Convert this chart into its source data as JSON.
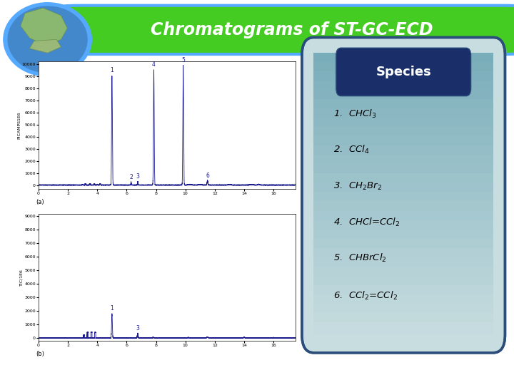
{
  "title": "Chromatograms of ST-GC-ECD",
  "title_color": "#ffffff",
  "title_bg_color": "#44cc22",
  "title_border_color": "#55aaff",
  "bg_color": "#ffffff",
  "chromatogram_line_color": "#1a1a8c",
  "species_box_bg_top": "#7aadba",
  "species_box_bg_bot": "#c8dde0",
  "species_border_color": "#2b4d7a",
  "species_header_bg": "#1a2f6a",
  "species_header_color": "#ffffff",
  "species_text_color": "#000000",
  "species_title": "Species",
  "species": [
    "1.  CHCl$_3$",
    "2.  CCl$_4$",
    "3.  CH$_2$Br$_2$",
    "4.  CHCl=CCl$_2$",
    "5.  CHBrCl$_2$",
    "6.  CCl$_2$=CCl$_2$"
  ],
  "plot_a_ylabel": "PICAMPS1E6",
  "plot_b_ylabel": "TIC/1E6",
  "plot_a_ylim": [
    -300,
    10200
  ],
  "plot_b_ylim": [
    -200,
    9200
  ],
  "plot_a_yticks": [
    0,
    1000,
    2000,
    3000,
    4000,
    5000,
    6000,
    7000,
    8000,
    9000,
    10000
  ],
  "plot_b_yticks": [
    0,
    1000,
    2000,
    3000,
    4000,
    5000,
    6000,
    7000,
    8000,
    9000
  ],
  "xlim": [
    0,
    17.5
  ],
  "xticks": [
    0,
    2,
    4,
    6,
    8,
    10,
    12,
    14,
    16
  ],
  "label_a": "(a)",
  "label_b": "(b)",
  "globe_border_color": "#55aaff",
  "globe_water_color": "#4488cc",
  "globe_land_color": "#88bb44"
}
